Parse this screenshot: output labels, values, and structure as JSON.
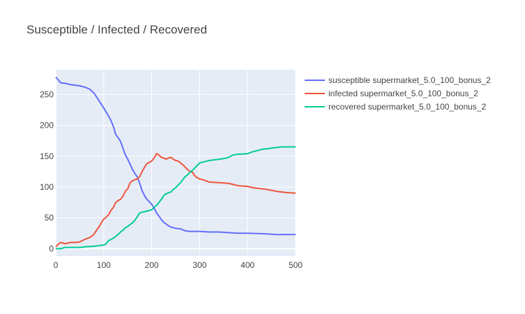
{
  "chart_data": {
    "type": "line",
    "title": "Susceptible / Infected / Recovered",
    "xlabel": "",
    "ylabel": "",
    "xlim": [
      0,
      500
    ],
    "ylim": [
      -12,
      290
    ],
    "x_ticks": [
      0,
      100,
      200,
      300,
      400,
      500
    ],
    "y_ticks": [
      0,
      50,
      100,
      150,
      200,
      250
    ],
    "x_tick_labels": [
      "0",
      "100",
      "200",
      "300",
      "400",
      "500"
    ],
    "y_tick_labels": [
      "0",
      "50",
      "100",
      "150",
      "200",
      "250"
    ],
    "grid": true,
    "legend_position": "right",
    "plot_background": "#E5ECF6",
    "series": [
      {
        "name": "susceptible supermarket_5.0_100_bonus_2",
        "color": "#636EFA",
        "points": [
          [
            0,
            278
          ],
          [
            5,
            274
          ],
          [
            10,
            269
          ],
          [
            20,
            268
          ],
          [
            30,
            266
          ],
          [
            40,
            265
          ],
          [
            50,
            264
          ],
          [
            60,
            262
          ],
          [
            70,
            259
          ],
          [
            80,
            252
          ],
          [
            90,
            240
          ],
          [
            100,
            228
          ],
          [
            110,
            215
          ],
          [
            115,
            208
          ],
          [
            120,
            198
          ],
          [
            125,
            185
          ],
          [
            130,
            180
          ],
          [
            135,
            174
          ],
          [
            140,
            163
          ],
          [
            145,
            152
          ],
          [
            150,
            145
          ],
          [
            155,
            137
          ],
          [
            160,
            128
          ],
          [
            165,
            122
          ],
          [
            170,
            116
          ],
          [
            175,
            106
          ],
          [
            180,
            94
          ],
          [
            185,
            86
          ],
          [
            190,
            80
          ],
          [
            195,
            76
          ],
          [
            200,
            72
          ],
          [
            205,
            66
          ],
          [
            210,
            58
          ],
          [
            215,
            53
          ],
          [
            220,
            47
          ],
          [
            225,
            43
          ],
          [
            230,
            40
          ],
          [
            235,
            37
          ],
          [
            240,
            35
          ],
          [
            250,
            33
          ],
          [
            260,
            32
          ],
          [
            270,
            29
          ],
          [
            280,
            28
          ],
          [
            300,
            28
          ],
          [
            320,
            27
          ],
          [
            340,
            27
          ],
          [
            360,
            26
          ],
          [
            380,
            25
          ],
          [
            400,
            25
          ],
          [
            440,
            24
          ],
          [
            460,
            23
          ],
          [
            480,
            23
          ],
          [
            500,
            23
          ]
        ]
      },
      {
        "name": "infected supermarket_5.0_100_bonus_2",
        "color": "#EF553B",
        "points": [
          [
            0,
            3
          ],
          [
            5,
            7
          ],
          [
            10,
            10
          ],
          [
            15,
            9
          ],
          [
            20,
            8
          ],
          [
            25,
            9
          ],
          [
            30,
            10
          ],
          [
            40,
            10
          ],
          [
            50,
            11
          ],
          [
            55,
            13
          ],
          [
            60,
            15
          ],
          [
            70,
            18
          ],
          [
            75,
            20
          ],
          [
            80,
            24
          ],
          [
            85,
            30
          ],
          [
            90,
            35
          ],
          [
            95,
            42
          ],
          [
            100,
            48
          ],
          [
            105,
            51
          ],
          [
            110,
            55
          ],
          [
            115,
            62
          ],
          [
            120,
            67
          ],
          [
            125,
            75
          ],
          [
            130,
            78
          ],
          [
            135,
            80
          ],
          [
            140,
            85
          ],
          [
            145,
            93
          ],
          [
            150,
            97
          ],
          [
            155,
            107
          ],
          [
            160,
            110
          ],
          [
            165,
            112
          ],
          [
            170,
            113
          ],
          [
            175,
            117
          ],
          [
            180,
            125
          ],
          [
            185,
            132
          ],
          [
            190,
            138
          ],
          [
            195,
            140
          ],
          [
            200,
            142
          ],
          [
            205,
            147
          ],
          [
            208,
            151
          ],
          [
            210,
            154
          ],
          [
            215,
            152
          ],
          [
            220,
            148
          ],
          [
            225,
            147
          ],
          [
            230,
            145
          ],
          [
            235,
            147
          ],
          [
            240,
            148
          ],
          [
            245,
            145
          ],
          [
            250,
            143
          ],
          [
            255,
            142
          ],
          [
            260,
            139
          ],
          [
            265,
            136
          ],
          [
            270,
            132
          ],
          [
            275,
            128
          ],
          [
            280,
            125
          ],
          [
            285,
            124
          ],
          [
            290,
            118
          ],
          [
            295,
            115
          ],
          [
            300,
            113
          ],
          [
            310,
            111
          ],
          [
            320,
            108
          ],
          [
            340,
            107
          ],
          [
            360,
            106
          ],
          [
            370,
            104
          ],
          [
            380,
            102
          ],
          [
            400,
            101
          ],
          [
            410,
            99
          ],
          [
            420,
            98
          ],
          [
            440,
            96
          ],
          [
            460,
            93
          ],
          [
            480,
            91
          ],
          [
            500,
            90
          ]
        ]
      },
      {
        "name": "recovered supermarket_5.0_100_bonus_2",
        "color": "#00CC96",
        "points": [
          [
            0,
            0
          ],
          [
            10,
            0
          ],
          [
            20,
            2
          ],
          [
            30,
            2
          ],
          [
            50,
            2
          ],
          [
            60,
            3
          ],
          [
            80,
            4
          ],
          [
            90,
            5
          ],
          [
            100,
            6
          ],
          [
            105,
            8
          ],
          [
            110,
            13
          ],
          [
            115,
            15
          ],
          [
            120,
            17
          ],
          [
            125,
            20
          ],
          [
            130,
            23
          ],
          [
            135,
            27
          ],
          [
            140,
            30
          ],
          [
            145,
            34
          ],
          [
            150,
            36
          ],
          [
            155,
            39
          ],
          [
            160,
            42
          ],
          [
            165,
            46
          ],
          [
            170,
            52
          ],
          [
            175,
            58
          ],
          [
            180,
            59
          ],
          [
            190,
            61
          ],
          [
            200,
            63
          ],
          [
            205,
            67
          ],
          [
            210,
            70
          ],
          [
            215,
            75
          ],
          [
            220,
            80
          ],
          [
            225,
            86
          ],
          [
            230,
            89
          ],
          [
            240,
            92
          ],
          [
            245,
            96
          ],
          [
            250,
            99
          ],
          [
            255,
            103
          ],
          [
            260,
            107
          ],
          [
            265,
            112
          ],
          [
            270,
            117
          ],
          [
            275,
            120
          ],
          [
            280,
            124
          ],
          [
            285,
            127
          ],
          [
            290,
            131
          ],
          [
            295,
            135
          ],
          [
            300,
            139
          ],
          [
            310,
            141
          ],
          [
            320,
            143
          ],
          [
            330,
            144
          ],
          [
            340,
            145
          ],
          [
            350,
            146
          ],
          [
            360,
            148
          ],
          [
            370,
            152
          ],
          [
            380,
            153
          ],
          [
            400,
            154
          ],
          [
            410,
            157
          ],
          [
            420,
            159
          ],
          [
            430,
            161
          ],
          [
            440,
            162
          ],
          [
            450,
            163
          ],
          [
            460,
            164
          ],
          [
            470,
            165
          ],
          [
            480,
            165
          ],
          [
            500,
            165
          ]
        ]
      }
    ]
  }
}
